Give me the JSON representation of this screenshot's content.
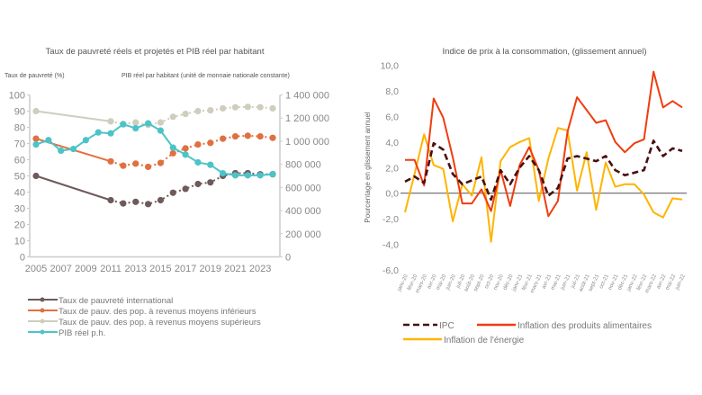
{
  "chart_data": [
    {
      "type": "line",
      "title": "Taux de pauvreté réels et projetés et PIB réel par habitant",
      "ylabel": "Taux de pauvreté (%)",
      "y2label": "PIB réel par habitant (unité de monnaie nationale constante)",
      "ylim": [
        0,
        100
      ],
      "y2lim": [
        0,
        1400000
      ],
      "yticks": [
        "0",
        "10",
        "20",
        "30",
        "40",
        "50",
        "60",
        "70",
        "80",
        "90",
        "100"
      ],
      "y2ticks": [
        "0",
        "200 000",
        "400 000",
        "600 000",
        "800 000",
        "1 000 000",
        "1 200 000",
        "1 400 000"
      ],
      "xticks": [
        "2005",
        "2007",
        "2009",
        "2011",
        "2013",
        "2015",
        "2017",
        "2019",
        "2021",
        "2023"
      ],
      "x": [
        2005,
        2006,
        2007,
        2008,
        2009,
        2010,
        2011,
        2012,
        2013,
        2014,
        2015,
        2016,
        2017,
        2018,
        2019,
        2020,
        2021,
        2022,
        2023,
        2024
      ],
      "grid": false,
      "legend_position": "bottom",
      "projection_start": 2011,
      "series": [
        {
          "name": "Taux de pauvreté international",
          "color": "#6e5a5a",
          "axis": "left",
          "values": [
            50,
            null,
            null,
            null,
            null,
            null,
            35,
            33,
            34,
            32.6,
            35,
            39.6,
            42,
            45,
            46,
            50,
            51.7,
            51.7,
            51,
            51
          ]
        },
        {
          "name": "Taux de pauv. des pop.  à revenus moyens inférieurs",
          "color": "#e0703f",
          "axis": "left",
          "values": [
            73,
            null,
            null,
            null,
            null,
            null,
            59,
            56.3,
            57.6,
            55.6,
            58,
            64,
            67,
            69.4,
            70.4,
            73,
            74.4,
            74.8,
            74.4,
            73.5
          ]
        },
        {
          "name": "Taux de pauv. des pop.  à revenus moyens supérieurs",
          "color": "#cfcdbd",
          "axis": "left",
          "values": [
            90,
            null,
            null,
            null,
            null,
            null,
            83.7,
            82,
            83,
            81.5,
            83,
            86.5,
            88.3,
            90,
            90.5,
            91.7,
            92.4,
            92.6,
            92.4,
            91.7
          ]
        },
        {
          "name": "PIB réel p.h.",
          "color": "#4cc3c8",
          "axis": "right",
          "values": [
            972000,
            1009000,
            918000,
            933000,
            1009000,
            1076000,
            1068000,
            1146000,
            1112000,
            1154000,
            1092000,
            944000,
            884000,
            817000,
            796000,
            723000,
            705000,
            705000,
            705000,
            716000
          ]
        }
      ]
    },
    {
      "type": "line",
      "title": "Indice de prix à la consommation, (glissement annuel)",
      "ylabel": "Pourcentage en glissement annuel",
      "ylim": [
        -6,
        10
      ],
      "yticks": [
        "-6,0",
        "-4,0",
        "-2,0",
        "0,0",
        "2,0",
        "4,0",
        "6,0",
        "8,0",
        "10,0"
      ],
      "grid": false,
      "legend_position": "bottom",
      "categories": [
        "janv-20",
        "févr-20",
        "mars-20",
        "avr-20",
        "mai-20",
        "juin-20",
        "juil-20",
        "août-20",
        "sept-20",
        "oct-20",
        "nov-20",
        "déc-20",
        "janv-21",
        "févr-21",
        "mars-21",
        "avr-21",
        "mai-21",
        "juin-21",
        "juil-21",
        "août-21",
        "sept-21",
        "oct-21",
        "nov-21",
        "déc-21",
        "janv-22",
        "févr-22",
        "mars-22",
        "avr-22",
        "mai-22",
        "juin-22"
      ],
      "series": [
        {
          "name": "IPC",
          "color": "#4a0f0f",
          "style": "dashed",
          "values": [
            0.9,
            1.3,
            0.8,
            3.9,
            3.4,
            1.5,
            0.7,
            1.0,
            1.3,
            -0.5,
            1.8,
            0.7,
            2.0,
            2.9,
            1.8,
            -0.2,
            0.4,
            2.7,
            2.9,
            2.7,
            2.5,
            2.9,
            1.8,
            1.4,
            1.6,
            1.8,
            4.1,
            2.9,
            3.5,
            3.3
          ]
        },
        {
          "name": "Inflation des produits alimentaires",
          "color": "#f03c0f",
          "style": "solid",
          "values": [
            2.6,
            2.6,
            0.6,
            7.4,
            5.9,
            2.8,
            -0.8,
            -0.8,
            0.3,
            -1.4,
            1.8,
            -1.0,
            2.2,
            3.6,
            1.8,
            -1.8,
            -0.6,
            4.8,
            7.5,
            6.5,
            5.5,
            5.7,
            4.0,
            3.2,
            3.9,
            4.2,
            9.5,
            6.7,
            7.2,
            6.7
          ]
        },
        {
          "name": "Inflation de l'énergie",
          "color": "#ffb400",
          "style": "solid",
          "values": [
            -1.5,
            1.5,
            4.6,
            2.2,
            1.9,
            -2.2,
            0.7,
            -0.2,
            2.8,
            -3.8,
            2.5,
            3.6,
            4.0,
            4.3,
            -0.6,
            2.7,
            5.1,
            4.9,
            0.2,
            3.2,
            -1.3,
            2.4,
            0.5,
            0.7,
            0.7,
            -0.1,
            -1.5,
            -1.9,
            -0.4,
            -0.5
          ]
        }
      ]
    }
  ]
}
